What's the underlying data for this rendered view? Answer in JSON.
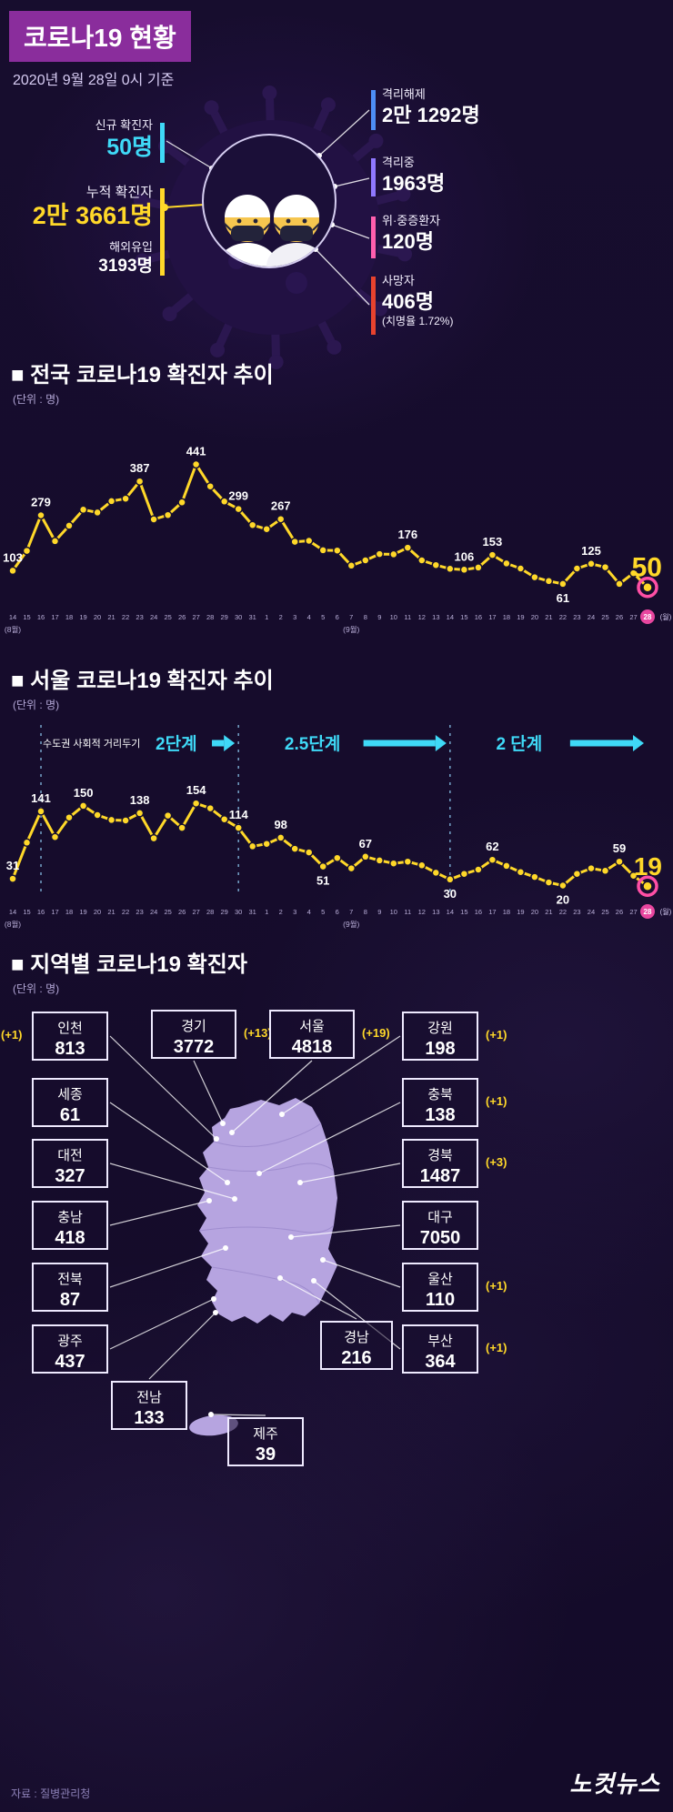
{
  "header": {
    "title": "코로나19 현황",
    "subtitle": "2020년 9월 28일 0시 기준"
  },
  "summary": {
    "new_cases": {
      "label": "신규 확진자",
      "value": "50명"
    },
    "cumulative": {
      "label": "누적 확진자",
      "value": "2만 3661명"
    },
    "imported": {
      "label": "해외유입",
      "value": "3193명"
    },
    "released": {
      "label": "격리해제",
      "value": "2만 1292명"
    },
    "quarantined": {
      "label": "격리중",
      "value": "1963명"
    },
    "critical": {
      "label": "위·중증환자",
      "value": "120명"
    },
    "deaths": {
      "label": "사망자",
      "value": "406명",
      "note": "(치명율 1.72%)"
    }
  },
  "chart_data": [
    {
      "type": "line",
      "title": "■ 전국 코로나19 확진자 추이",
      "unit": "(단위 : 명)",
      "ylim": [
        0,
        480
      ],
      "ymax": 480,
      "x": [
        "14",
        "15",
        "16",
        "17",
        "18",
        "19",
        "20",
        "21",
        "22",
        "23",
        "24",
        "25",
        "26",
        "27",
        "28",
        "29",
        "30",
        "31",
        "1",
        "2",
        "3",
        "4",
        "5",
        "6",
        "7",
        "8",
        "9",
        "10",
        "11",
        "12",
        "13",
        "14",
        "15",
        "16",
        "17",
        "18",
        "19",
        "20",
        "21",
        "22",
        "23",
        "24",
        "25",
        "26",
        "27",
        "28"
      ],
      "month_labels": [
        {
          "index": 0,
          "text": "(8월)"
        },
        {
          "index": 24,
          "text": "(9월)"
        }
      ],
      "weekday_suffix": "(월)",
      "values": [
        103,
        166,
        279,
        197,
        246,
        297,
        288,
        324,
        332,
        387,
        266,
        280,
        320,
        441,
        371,
        323,
        299,
        248,
        235,
        267,
        195,
        198,
        168,
        167,
        119,
        136,
        156,
        155,
        176,
        136,
        121,
        109,
        106,
        113,
        153,
        126,
        110,
        82,
        70,
        61,
        110,
        125,
        114,
        61,
        95,
        50
      ],
      "labels": [
        {
          "index": 0,
          "text": "103"
        },
        {
          "index": 2,
          "text": "279"
        },
        {
          "index": 9,
          "text": "387"
        },
        {
          "index": 13,
          "text": "441"
        },
        {
          "index": 16,
          "text": "299"
        },
        {
          "index": 19,
          "text": "267"
        },
        {
          "index": 28,
          "text": "176"
        },
        {
          "index": 32,
          "text": "106"
        },
        {
          "index": 34,
          "text": "153"
        },
        {
          "index": 39,
          "text": "61",
          "below": true
        },
        {
          "index": 41,
          "text": "125"
        },
        {
          "index": 45,
          "text": "50",
          "final": true
        }
      ]
    },
    {
      "type": "line",
      "title": "■ 서울 코로나19 확진자 추이",
      "unit": "(단위 : 명)",
      "ylim": [
        0,
        175
      ],
      "ymax": 175,
      "x": [
        "14",
        "15",
        "16",
        "17",
        "18",
        "19",
        "20",
        "21",
        "22",
        "23",
        "24",
        "25",
        "26",
        "27",
        "28",
        "29",
        "30",
        "31",
        "1",
        "2",
        "3",
        "4",
        "5",
        "6",
        "7",
        "8",
        "9",
        "10",
        "11",
        "12",
        "13",
        "14",
        "15",
        "16",
        "17",
        "18",
        "19",
        "20",
        "21",
        "22",
        "23",
        "24",
        "25",
        "26",
        "27",
        "28"
      ],
      "month_labels": [
        {
          "index": 0,
          "text": "(8월)"
        },
        {
          "index": 24,
          "text": "(9월)"
        }
      ],
      "weekday_suffix": "(월)",
      "values": [
        31,
        90,
        141,
        99,
        131,
        150,
        135,
        127,
        126,
        138,
        97,
        134,
        114,
        154,
        146,
        128,
        114,
        84,
        88,
        98,
        80,
        74,
        51,
        65,
        48,
        67,
        61,
        56,
        59,
        53,
        41,
        30,
        39,
        46,
        62,
        52,
        42,
        34,
        25,
        20,
        39,
        48,
        44,
        59,
        36,
        19
      ],
      "labels": [
        {
          "index": 0,
          "text": "31"
        },
        {
          "index": 2,
          "text": "141"
        },
        {
          "index": 5,
          "text": "150"
        },
        {
          "index": 9,
          "text": "138"
        },
        {
          "index": 13,
          "text": "154"
        },
        {
          "index": 16,
          "text": "114"
        },
        {
          "index": 19,
          "text": "98"
        },
        {
          "index": 22,
          "text": "51",
          "below": true
        },
        {
          "index": 25,
          "text": "67"
        },
        {
          "index": 31,
          "text": "30",
          "below": true
        },
        {
          "index": 34,
          "text": "62"
        },
        {
          "index": 39,
          "text": "20",
          "below": true
        },
        {
          "index": 43,
          "text": "59"
        },
        {
          "index": 45,
          "text": "19",
          "final": true
        }
      ],
      "annotations": {
        "prefix": "수도권 사회적 거리두기",
        "stages": [
          {
            "label": "2단계",
            "from_index": 2,
            "to_index": 16
          },
          {
            "label": "2.5단계",
            "from_index": 16,
            "to_index": 31
          },
          {
            "label": "2 단계",
            "from_index": 31,
            "to_index": 45
          }
        ]
      }
    }
  ],
  "regions": {
    "title": "■ 지역별 코로나19 확진자",
    "unit": "(단위 : 명)",
    "items": [
      {
        "id": "incheon",
        "name": "인천",
        "value": "813",
        "delta": "(+1)"
      },
      {
        "id": "sejong",
        "name": "세종",
        "value": "61",
        "delta": ""
      },
      {
        "id": "daejeon",
        "name": "대전",
        "value": "327",
        "delta": ""
      },
      {
        "id": "chungnam",
        "name": "충남",
        "value": "418",
        "delta": ""
      },
      {
        "id": "jeonbuk",
        "name": "전북",
        "value": "87",
        "delta": ""
      },
      {
        "id": "gwangju",
        "name": "광주",
        "value": "437",
        "delta": ""
      },
      {
        "id": "jeonnam",
        "name": "전남",
        "value": "133",
        "delta": ""
      },
      {
        "id": "jeju",
        "name": "제주",
        "value": "39",
        "delta": ""
      },
      {
        "id": "gyeonggi",
        "name": "경기",
        "value": "3772",
        "delta": "(+13)"
      },
      {
        "id": "seoul",
        "name": "서울",
        "value": "4818",
        "delta": "(+19)"
      },
      {
        "id": "gangwon",
        "name": "강원",
        "value": "198",
        "delta": "(+1)"
      },
      {
        "id": "chungbuk",
        "name": "충북",
        "value": "138",
        "delta": "(+1)"
      },
      {
        "id": "gyeongbuk",
        "name": "경북",
        "value": "1487",
        "delta": "(+3)"
      },
      {
        "id": "daegu",
        "name": "대구",
        "value": "7050",
        "delta": ""
      },
      {
        "id": "ulsan",
        "name": "울산",
        "value": "110",
        "delta": "(+1)"
      },
      {
        "id": "busan",
        "name": "부산",
        "value": "364",
        "delta": "(+1)"
      },
      {
        "id": "gyeongnam",
        "name": "경남",
        "value": "216",
        "delta": ""
      }
    ]
  },
  "footer": {
    "source": "자료 : 질병관리청",
    "logo": "노컷뉴스"
  },
  "colors": {
    "accent_yellow": "#ffd829",
    "accent_cyan": "#3fd9f7",
    "released_blue": "#4d8df5",
    "quarantine_purple": "#8f78ff",
    "critical_pink": "#ff5fae",
    "death_red": "#e8432e",
    "highlight_pink": "#e8469f",
    "final_ring_pink": "#ff4fa5",
    "map_purple": "#b6a4e0",
    "title_box_purple": "#8a2d9c"
  }
}
